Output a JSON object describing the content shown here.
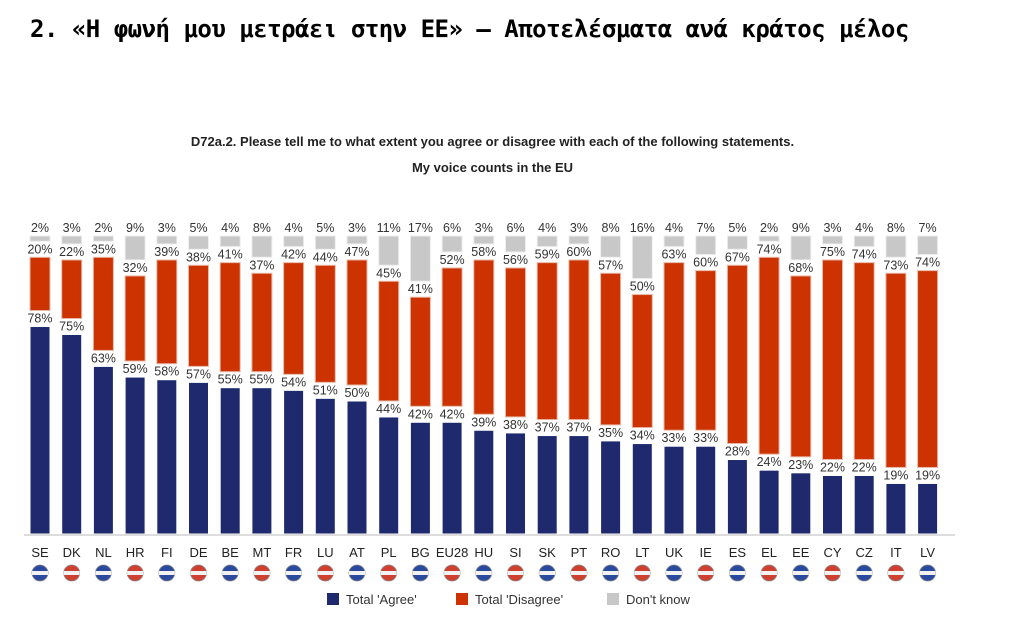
{
  "header": {
    "title": "2. «Η φωνή μου μετράει στην ΕΕ» – Αποτελέσματα ανά κράτος μέλος"
  },
  "chart_data": {
    "type": "bar",
    "title": "D72a.2. Please tell me to what extent you agree or disagree with each of the following statements.",
    "subtitle": "My voice counts in the EU",
    "categories": [
      "SE",
      "DK",
      "NL",
      "HR",
      "FI",
      "DE",
      "BE",
      "MT",
      "FR",
      "LU",
      "AT",
      "PL",
      "BG",
      "EU28",
      "HU",
      "SI",
      "SK",
      "PT",
      "RO",
      "LT",
      "UK",
      "IE",
      "ES",
      "EL",
      "EE",
      "CY",
      "CZ",
      "IT",
      "LV"
    ],
    "series": [
      {
        "name": "Total 'Agree'",
        "color": "#1f2a6e",
        "values": [
          78,
          75,
          63,
          59,
          58,
          57,
          55,
          55,
          54,
          51,
          50,
          44,
          42,
          42,
          39,
          38,
          37,
          37,
          35,
          34,
          33,
          33,
          28,
          24,
          23,
          22,
          22,
          19,
          19
        ]
      },
      {
        "name": "Total 'Disagree'",
        "color": "#cc3300",
        "values": [
          20,
          22,
          35,
          32,
          39,
          38,
          41,
          37,
          42,
          44,
          47,
          45,
          41,
          52,
          58,
          56,
          59,
          60,
          57,
          50,
          63,
          60,
          67,
          74,
          68,
          75,
          74,
          73,
          74
        ]
      },
      {
        "name": "Don't know",
        "color": "#c8c8c8",
        "values": [
          2,
          3,
          2,
          9,
          3,
          5,
          4,
          8,
          4,
          5,
          3,
          11,
          17,
          6,
          3,
          6,
          4,
          3,
          8,
          16,
          4,
          7,
          5,
          2,
          9,
          3,
          4,
          8,
          7
        ]
      }
    ],
    "flag_icons": [
      "flag-se-icon",
      "flag-dk-icon",
      "flag-nl-icon",
      "flag-hr-icon",
      "flag-fi-icon",
      "flag-de-icon",
      "flag-be-icon",
      "flag-mt-icon",
      "flag-fr-icon",
      "flag-lu-icon",
      "flag-at-icon",
      "flag-pl-icon",
      "flag-bg-icon",
      "flag-eu-icon",
      "flag-hu-icon",
      "flag-si-icon",
      "flag-sk-icon",
      "flag-pt-icon",
      "flag-ro-icon",
      "flag-lt-icon",
      "flag-uk-icon",
      "flag-ie-icon",
      "flag-es-icon",
      "flag-el-icon",
      "flag-ee-icon",
      "flag-cy-icon",
      "flag-cz-icon",
      "flag-it-icon",
      "flag-lv-icon"
    ],
    "legend": [
      "Total 'Agree'",
      "Total 'Disagree'",
      "Don't know"
    ],
    "legend_position": "bottom",
    "grid": false
  }
}
